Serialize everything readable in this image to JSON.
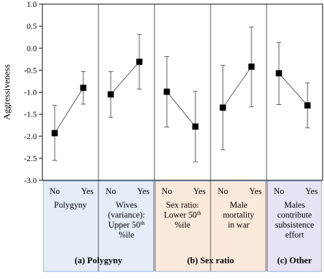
{
  "chart_data": {
    "type": "scatter",
    "ylabel": "Aggressiveness",
    "ylim": [
      -3.0,
      1.0
    ],
    "yticks": [
      "1.0",
      "0.5",
      "0.0",
      "-0.5",
      "-1.0",
      "-1.5",
      "-2.0",
      "-2.5",
      "-3.0"
    ],
    "ytick_values": [
      1.0,
      0.5,
      0.0,
      -0.5,
      -1.0,
      -1.5,
      -2.0,
      -2.5,
      -3.0
    ],
    "x_categories": [
      "No",
      "Yes"
    ],
    "markers": "filled squares with error bars, connected by line",
    "panels": [
      {
        "label": "Polygyny",
        "label_lines": [
          "Polygyny"
        ],
        "points": [
          {
            "x": "No",
            "y": -1.93,
            "err_low": -2.55,
            "err_high": -1.3
          },
          {
            "x": "Yes",
            "y": -0.9,
            "err_low": -1.27,
            "err_high": -0.53
          }
        ]
      },
      {
        "label": "Wives (variance): Upper 50th %ile",
        "label_lines": [
          "Wives",
          "(variance):",
          "Upper 50|th",
          "%ile"
        ],
        "points": [
          {
            "x": "No",
            "y": -1.05,
            "err_low": -1.57,
            "err_high": -0.53
          },
          {
            "x": "Yes",
            "y": -0.31,
            "err_low": -0.93,
            "err_high": 0.31
          }
        ]
      },
      {
        "label": "Sex ratio: Lower 50th %ile",
        "label_lines": [
          "Sex ratio:",
          "Lower 50|th",
          "%ile"
        ],
        "points": [
          {
            "x": "No",
            "y": -0.99,
            "err_low": -1.79,
            "err_high": -0.19
          },
          {
            "x": "Yes",
            "y": -1.78,
            "err_low": -2.58,
            "err_high": -0.98
          }
        ]
      },
      {
        "label": "Male mortality in war",
        "label_lines": [
          "Male",
          "mortality",
          "in war"
        ],
        "points": [
          {
            "x": "No",
            "y": -1.35,
            "err_low": -2.31,
            "err_high": -0.39
          },
          {
            "x": "Yes",
            "y": -0.42,
            "err_low": -1.33,
            "err_high": 0.48
          }
        ]
      },
      {
        "label": "Males contribute subsistence effort",
        "label_lines": [
          "Males",
          "contribute",
          "subsistence",
          "effort"
        ],
        "points": [
          {
            "x": "No",
            "y": -0.57,
            "err_low": -1.28,
            "err_high": 0.13
          },
          {
            "x": "Yes",
            "y": -1.3,
            "err_low": -1.81,
            "err_high": -0.79
          }
        ]
      }
    ],
    "groups": [
      {
        "label": "(a) Polygyny",
        "panels": [
          0,
          1
        ],
        "color": "#e4edf8"
      },
      {
        "label": "(b) Sex ratio",
        "panels": [
          2,
          3
        ],
        "color": "#fbe9dc"
      },
      {
        "label": "(c) Other",
        "panels": [
          4
        ],
        "color": "#e9e1f4"
      }
    ],
    "grid": false,
    "legend": "none"
  },
  "colors": {
    "axis": "#000000",
    "divider": "#555555",
    "marker": "#000000",
    "errorbar": "#555555",
    "line": "#555555",
    "group_border": "#8fb3dc"
  }
}
